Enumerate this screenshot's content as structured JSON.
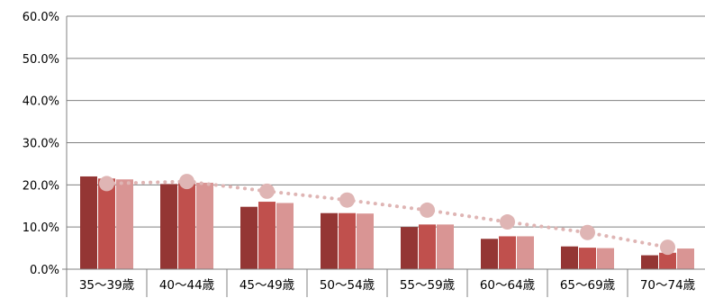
{
  "chart_data": {
    "type": "bar",
    "title": "",
    "xlabel": "",
    "ylabel": "",
    "ylim": [
      0,
      60
    ],
    "y_ticks": [
      "0.0%",
      "10.0%",
      "20.0%",
      "30.0%",
      "40.0%",
      "50.0%",
      "60.0%"
    ],
    "y_tick_values": [
      0,
      10,
      20,
      30,
      40,
      50,
      60
    ],
    "grid": true,
    "legend": "none",
    "categories": [
      "35〜39歳",
      "40〜44歳",
      "45〜49歳",
      "50〜54歳",
      "55〜59歳",
      "60〜64歳",
      "65〜69歳",
      "70〜74歳"
    ],
    "series": [
      {
        "type": "bar",
        "color": "#943634",
        "values": [
          22.0,
          20.2,
          14.8,
          13.3,
          10.0,
          7.2,
          5.4,
          3.3
        ]
      },
      {
        "type": "bar",
        "color": "#C0504D",
        "values": [
          21.5,
          21.0,
          16.0,
          13.3,
          10.6,
          7.8,
          5.1,
          3.9
        ]
      },
      {
        "type": "bar",
        "color": "#D99594",
        "values": [
          21.3,
          20.5,
          15.7,
          13.2,
          10.6,
          7.8,
          5.0,
          4.9
        ]
      },
      {
        "type": "line",
        "style": "dotted-with-markers",
        "color": "#DFB5B4",
        "values": [
          20.3,
          20.8,
          18.5,
          16.4,
          14.0,
          11.2,
          8.7,
          5.2
        ]
      }
    ]
  }
}
